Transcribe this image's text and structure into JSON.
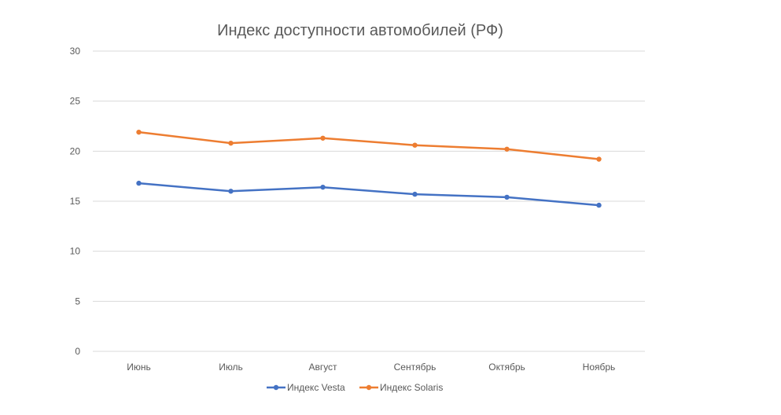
{
  "chart_data": {
    "type": "line",
    "title": "Индекс доступности автомобилей (РФ)",
    "xlabel": "",
    "ylabel": "",
    "categories": [
      "Июнь",
      "Июль",
      "Август",
      "Сентябрь",
      "Октябрь",
      "Ноябрь"
    ],
    "ylim": [
      0,
      30
    ],
    "yticks": [
      0,
      5,
      10,
      15,
      20,
      25,
      30
    ],
    "grid": true,
    "legend_position": "bottom",
    "series": [
      {
        "name": "Индекс Vesta",
        "color": "#4472c4",
        "values": [
          16.8,
          16.0,
          16.4,
          15.7,
          15.4,
          14.6
        ]
      },
      {
        "name": "Индекс Solaris",
        "color": "#ed7d31",
        "values": [
          21.9,
          20.8,
          21.3,
          20.6,
          20.2,
          19.2
        ]
      }
    ]
  }
}
